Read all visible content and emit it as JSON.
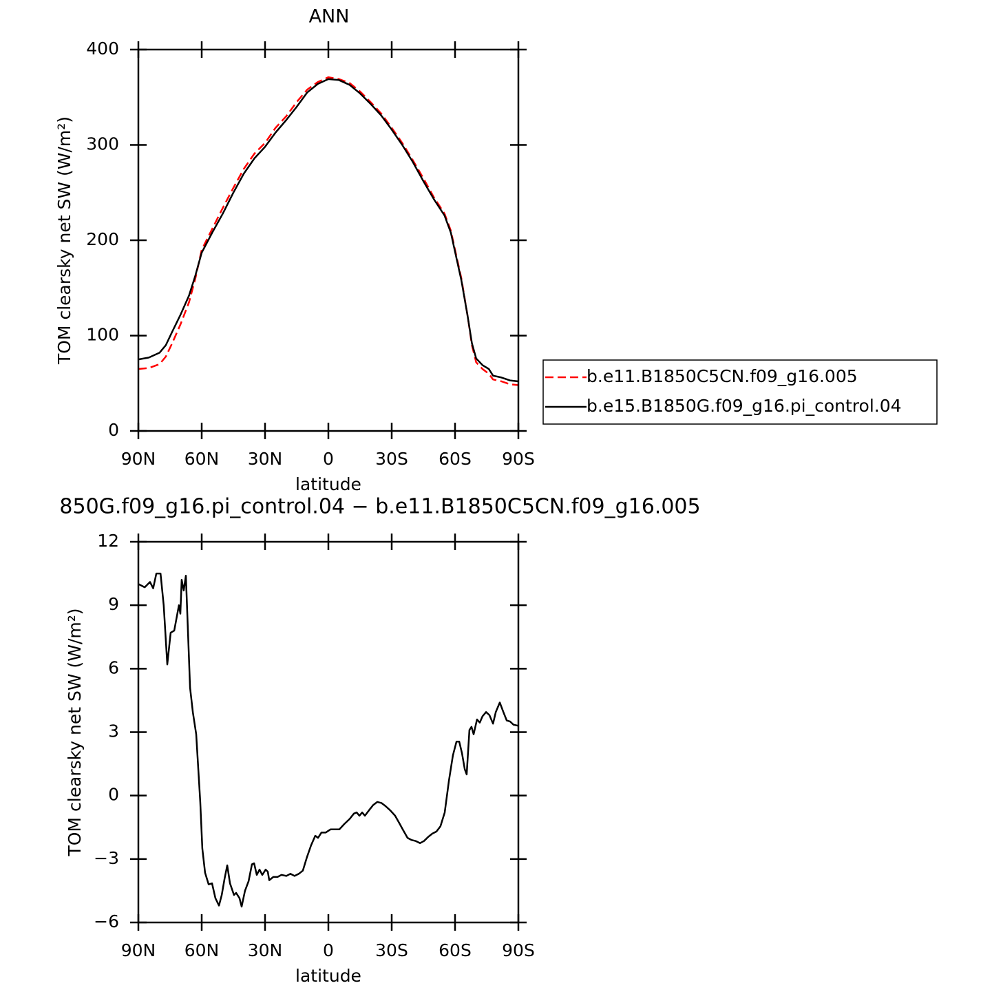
{
  "chart_data": [
    {
      "type": "line",
      "title": "ANN",
      "x_label": "latitude",
      "y_label": "TOM clearsky net SW (W/m²)",
      "x": [
        90,
        85,
        80,
        77,
        74,
        70,
        66,
        63,
        60,
        55,
        50,
        45,
        40,
        35,
        30,
        25,
        20,
        15,
        10,
        5,
        0,
        -5,
        -10,
        -15,
        -20,
        -25,
        -30,
        -35,
        -40,
        -45,
        -50,
        -55,
        -58,
        -60,
        -63,
        -66,
        -68,
        -70,
        -73,
        -76,
        -78,
        -82,
        -86,
        -90
      ],
      "series": [
        {
          "name": "b.e11.B1850C5CN.f09_g16.005",
          "color": "#ff0000",
          "linestyle": "dashed",
          "values": [
            65,
            66,
            70,
            78,
            92,
            112,
            135,
            160,
            190,
            212,
            234,
            255,
            275,
            291,
            302,
            318,
            330,
            345,
            358,
            366,
            371,
            369,
            365,
            356,
            345,
            333,
            318,
            302,
            284,
            265,
            245,
            228,
            210,
            190,
            160,
            120,
            90,
            72,
            65,
            60,
            54,
            52,
            49,
            48
          ]
        },
        {
          "name": "b.e15.B1850G.f09_g16.pi_control.04",
          "color": "#000000",
          "linestyle": "solid",
          "values": [
            75,
            77,
            82,
            90,
            104,
            122,
            142,
            163,
            187,
            208,
            228,
            250,
            270,
            286,
            298,
            313,
            326,
            340,
            355,
            364,
            369,
            368,
            363,
            354,
            343,
            331,
            316,
            300,
            282,
            262,
            243,
            226,
            208,
            188,
            158,
            120,
            92,
            76,
            69,
            65,
            58,
            56,
            53,
            52
          ]
        }
      ],
      "xlim": [
        90,
        -90
      ],
      "xticks": [
        {
          "value": 90,
          "label": "90N"
        },
        {
          "value": 60,
          "label": "60N"
        },
        {
          "value": 30,
          "label": "30N"
        },
        0,
        {
          "value": -30,
          "label": "30S"
        },
        {
          "value": -60,
          "label": "60S"
        },
        {
          "value": -90,
          "label": "90S"
        }
      ],
      "ylim": [
        0,
        400
      ],
      "yticks": [
        0,
        100,
        200,
        300,
        400
      ],
      "legend": "right"
    },
    {
      "type": "line",
      "title": "850G.f09_g16.pi_control.04 − b.e11.B1850C5CN.f09_g16.005",
      "x_label": "latitude",
      "y_label": "TOM clearsky net SW (W/m²)",
      "x": [
        90,
        87,
        84.5,
        83,
        81.5,
        79.5,
        78,
        76.3,
        74.7,
        73,
        70.8,
        70.1,
        69.5,
        68.5,
        67.5,
        65.5,
        64.2,
        62.6,
        60.7,
        59.7,
        58.4,
        56.7,
        55.1,
        53.5,
        51.8,
        50.5,
        49.2,
        47.9,
        46.6,
        44.7,
        43.7,
        42.1,
        41.1,
        39.5,
        37.8,
        36.2,
        35.2,
        33.9,
        32.6,
        31.3,
        29.7,
        28.7,
        28,
        26.1,
        24.1,
        22.2,
        19.9,
        18,
        16,
        14,
        12.1,
        10.1,
        8.2,
        6.2,
        4.9,
        3.3,
        1.3,
        -1,
        -3.3,
        -5.2,
        -7.5,
        -10.1,
        -12.1,
        -13.4,
        -14.7,
        -16,
        -17.3,
        -19.2,
        -21.2,
        -23.2,
        -25.1,
        -27.1,
        -29.3,
        -31.6,
        -33.6,
        -35.5,
        -37.5,
        -39.4,
        -41.4,
        -43.4,
        -45.3,
        -47.3,
        -49.2,
        -51.2,
        -53.1,
        -55.1,
        -57.1,
        -59,
        -60.7,
        -62,
        -63.3,
        -64.6,
        -65.5,
        -66.8,
        -67.8,
        -68.8,
        -70.4,
        -71.7,
        -73,
        -74.7,
        -76.3,
        -78,
        -79.3,
        -81.2,
        -82.9,
        -84.5,
        -86.1,
        -87.7,
        -90
      ],
      "series": [
        {
          "color": "#000000",
          "linestyle": "solid",
          "values": [
            10.0,
            9.85,
            10.1,
            9.8,
            10.5,
            10.5,
            9.0,
            6.2,
            7.7,
            7.8,
            9.0,
            8.6,
            10.2,
            9.7,
            10.4,
            5.1,
            3.95,
            2.9,
            -0.3,
            -2.5,
            -3.65,
            -4.2,
            -4.15,
            -4.85,
            -5.2,
            -4.7,
            -3.95,
            -3.3,
            -4.15,
            -4.7,
            -4.6,
            -4.85,
            -5.25,
            -4.5,
            -4.05,
            -3.25,
            -3.2,
            -3.75,
            -3.5,
            -3.75,
            -3.5,
            -3.6,
            -4.0,
            -3.85,
            -3.85,
            -3.75,
            -3.8,
            -3.7,
            -3.8,
            -3.7,
            -3.55,
            -2.9,
            -2.35,
            -1.9,
            -2.0,
            -1.75,
            -1.75,
            -1.6,
            -1.6,
            -1.6,
            -1.35,
            -1.1,
            -0.85,
            -0.8,
            -0.95,
            -0.8,
            -0.95,
            -0.7,
            -0.45,
            -0.3,
            -0.35,
            -0.5,
            -0.7,
            -0.95,
            -1.3,
            -1.65,
            -2.0,
            -2.1,
            -2.15,
            -2.25,
            -2.15,
            -1.95,
            -1.8,
            -1.7,
            -1.45,
            -0.8,
            0.7,
            1.9,
            2.55,
            2.55,
            2.0,
            1.25,
            1.0,
            3.1,
            3.25,
            2.9,
            3.6,
            3.45,
            3.75,
            3.95,
            3.8,
            3.4,
            3.95,
            4.4,
            3.95,
            3.55,
            3.5,
            3.35,
            3.3
          ]
        }
      ],
      "xlim": [
        90,
        -90
      ],
      "xticks": [
        {
          "value": 90,
          "label": "90N"
        },
        {
          "value": 60,
          "label": "60N"
        },
        {
          "value": 30,
          "label": "30N"
        },
        0,
        {
          "value": -30,
          "label": "30S"
        },
        {
          "value": -60,
          "label": "60S"
        },
        {
          "value": -90,
          "label": "90S"
        }
      ],
      "ylim": [
        -6,
        12
      ],
      "yticks": [
        {
          "value": -6,
          "label": "−6"
        },
        {
          "value": -3,
          "label": "−3"
        },
        0,
        3,
        6,
        9,
        12
      ]
    }
  ]
}
